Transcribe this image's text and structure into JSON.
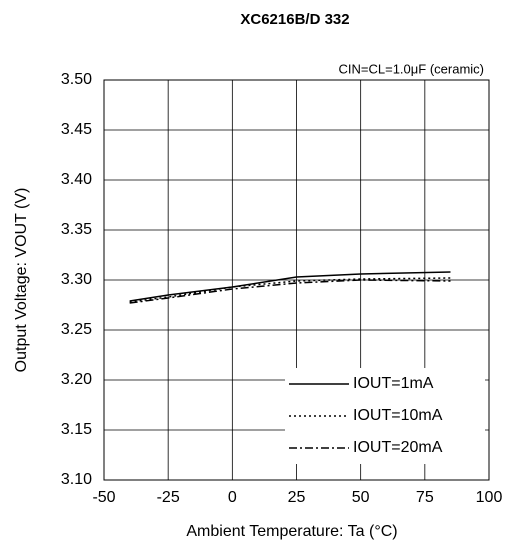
{
  "chart_data": {
    "type": "line",
    "title": "XC6216B/D 332",
    "annotation": "CIN=CL=1.0μF (ceramic)",
    "xlabel": "Ambient Temperature: Ta (°C)",
    "ylabel": "Output Voltage: VOUT (V)",
    "x": [
      -40,
      -25,
      0,
      25,
      50,
      85
    ],
    "series": [
      {
        "name": "IOUT=1mA",
        "color": "#000000",
        "style": "solid",
        "values": [
          3.279,
          3.285,
          3.293,
          3.303,
          3.306,
          3.308
        ]
      },
      {
        "name": "IOUT=10mA",
        "color": "#000000",
        "style": "dotted",
        "values": [
          3.278,
          3.283,
          3.293,
          3.299,
          3.301,
          3.302
        ]
      },
      {
        "name": "IOUT=20mA",
        "color": "#000000",
        "style": "dashdot",
        "values": [
          3.277,
          3.282,
          3.291,
          3.297,
          3.3,
          3.299
        ]
      }
    ],
    "xlim": [
      -50,
      100
    ],
    "xticks": [
      -50,
      -25,
      0,
      25,
      50,
      75,
      100
    ],
    "ylim": [
      3.1,
      3.5
    ],
    "yticks": [
      {
        "value": 3.1,
        "label": "3.10"
      },
      3.15,
      {
        "value": 3.2,
        "label": "3.20"
      },
      3.25,
      {
        "value": 3.3,
        "label": "3.30"
      },
      3.35,
      {
        "value": 3.4,
        "label": "3.40"
      },
      3.45,
      {
        "value": 3.5,
        "label": "3.50"
      }
    ],
    "grid": true,
    "legend": "lower right"
  }
}
